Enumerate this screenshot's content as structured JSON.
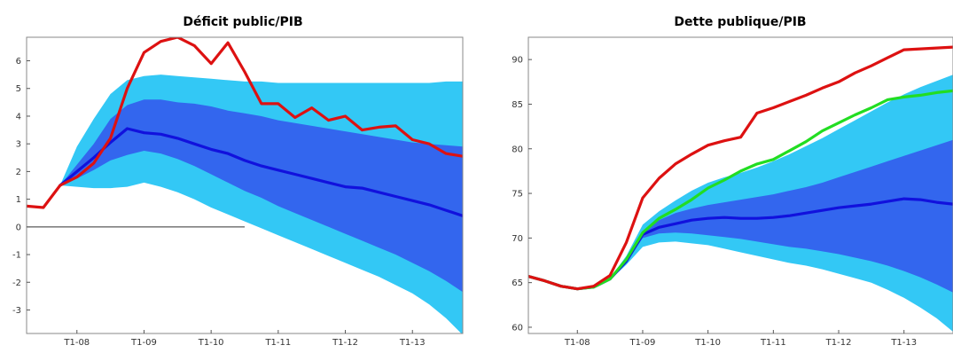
{
  "chart_data": [
    {
      "type": "area",
      "title": "Déficit public/PIB",
      "xlabel": "",
      "ylabel": "",
      "xlim": [
        2007.25,
        2013.75
      ],
      "ylim": [
        -3.85,
        6.85
      ],
      "yticks": [
        -3,
        -2,
        -1,
        0,
        1,
        2,
        3,
        4,
        5,
        6
      ],
      "xticks": [
        {
          "label": "T1-08",
          "x": 2008.0
        },
        {
          "label": "T1-09",
          "x": 2009.0
        },
        {
          "label": "T1-10",
          "x": 2010.0
        },
        {
          "label": "T1-11",
          "x": 2011.0
        },
        {
          "label": "T1-12",
          "x": 2012.0
        },
        {
          "label": "T1-13",
          "x": 2013.0
        }
      ],
      "zero_line": true,
      "grid": false,
      "x": [
        2007.75,
        2008.0,
        2008.25,
        2008.5,
        2008.75,
        2009.0,
        2009.25,
        2009.5,
        2009.75,
        2010.0,
        2010.25,
        2010.5,
        2010.75,
        2011.0,
        2011.25,
        2011.5,
        2011.75,
        2012.0,
        2012.25,
        2012.5,
        2012.75,
        2013.0,
        2013.25,
        2013.5,
        2013.75
      ],
      "bands": [
        {
          "color": "#33c8f5",
          "lower": [
            1.5,
            1.45,
            1.4,
            1.4,
            1.45,
            1.6,
            1.45,
            1.25,
            1.0,
            0.7,
            0.45,
            0.2,
            -0.05,
            -0.3,
            -0.55,
            -0.8,
            -1.05,
            -1.3,
            -1.55,
            -1.8,
            -2.1,
            -2.4,
            -2.8,
            -3.3,
            -3.9
          ],
          "upper": [
            1.5,
            2.9,
            3.9,
            4.8,
            5.3,
            5.45,
            5.5,
            5.45,
            5.4,
            5.35,
            5.3,
            5.25,
            5.25,
            5.2,
            5.2,
            5.2,
            5.2,
            5.2,
            5.2,
            5.2,
            5.2,
            5.2,
            5.2,
            5.25,
            5.25
          ]
        },
        {
          "color": "#3366ee",
          "lower": [
            1.5,
            1.75,
            2.05,
            2.4,
            2.6,
            2.75,
            2.65,
            2.45,
            2.2,
            1.9,
            1.6,
            1.3,
            1.05,
            0.75,
            0.5,
            0.25,
            0.0,
            -0.25,
            -0.5,
            -0.75,
            -1.0,
            -1.3,
            -1.6,
            -1.95,
            -2.35
          ],
          "upper": [
            1.5,
            2.25,
            3.0,
            3.9,
            4.4,
            4.6,
            4.6,
            4.5,
            4.45,
            4.35,
            4.2,
            4.1,
            4.0,
            3.85,
            3.75,
            3.65,
            3.55,
            3.45,
            3.35,
            3.25,
            3.15,
            3.05,
            3.0,
            2.95,
            2.9
          ]
        }
      ],
      "series": [
        {
          "name": "",
          "color": "#1111dd",
          "x": [
            2007.75,
            2008.0,
            2008.25,
            2008.5,
            2008.75,
            2009.0,
            2009.25,
            2009.5,
            2009.75,
            2010.0,
            2010.25,
            2010.5,
            2010.75,
            2011.0,
            2011.25,
            2011.5,
            2011.75,
            2012.0,
            2012.25,
            2012.5,
            2012.75,
            2013.0,
            2013.25,
            2013.5,
            2013.75
          ],
          "values": [
            1.5,
            2.0,
            2.5,
            3.05,
            3.55,
            3.4,
            3.35,
            3.2,
            3.0,
            2.8,
            2.65,
            2.4,
            2.2,
            2.05,
            1.9,
            1.75,
            1.6,
            1.45,
            1.4,
            1.25,
            1.1,
            0.95,
            0.8,
            0.6,
            0.4
          ]
        },
        {
          "name": "",
          "color": "#dd1111",
          "x": [
            2007.0,
            2007.25,
            2007.5,
            2007.75,
            2008.0,
            2008.25,
            2008.5,
            2008.75,
            2009.0,
            2009.25,
            2009.5,
            2009.75,
            2010.0,
            2010.25,
            2010.5,
            2010.75,
            2011.0,
            2011.25,
            2011.5,
            2011.75,
            2012.0,
            2012.25,
            2012.5,
            2012.75,
            2013.0,
            2013.25,
            2013.5,
            2013.75
          ],
          "values": [
            0.5,
            0.75,
            0.7,
            1.5,
            1.8,
            2.3,
            3.2,
            5.0,
            6.3,
            6.7,
            6.85,
            6.55,
            5.9,
            6.65,
            5.6,
            4.45,
            4.45,
            3.95,
            4.3,
            3.85,
            4.0,
            3.5,
            3.6,
            3.65,
            3.15,
            3.0,
            2.65,
            2.55
          ]
        }
      ]
    },
    {
      "type": "area",
      "title": "Dette publique/PIB",
      "xlabel": "",
      "ylabel": "",
      "xlim": [
        2007.25,
        2013.75
      ],
      "ylim": [
        59.3,
        92.5
      ],
      "yticks": [
        60,
        65,
        70,
        75,
        80,
        85,
        90
      ],
      "xticks": [
        {
          "label": "T1-08",
          "x": 2008.0
        },
        {
          "label": "T1-09",
          "x": 2009.0
        },
        {
          "label": "T1-10",
          "x": 2010.0
        },
        {
          "label": "T1-11",
          "x": 2011.0
        },
        {
          "label": "T1-12",
          "x": 2012.0
        },
        {
          "label": "T1-13",
          "x": 2013.0
        }
      ],
      "zero_line": false,
      "grid": false,
      "x": [
        2007.25,
        2007.5,
        2007.75,
        2008.0,
        2008.25,
        2008.5,
        2008.75,
        2009.0,
        2009.25,
        2009.5,
        2009.75,
        2010.0,
        2010.25,
        2010.5,
        2010.75,
        2011.0,
        2011.25,
        2011.5,
        2011.75,
        2012.0,
        2012.25,
        2012.5,
        2012.75,
        2013.0,
        2013.25,
        2013.5,
        2013.75
      ],
      "bands": [
        {
          "color": "#33c8f5",
          "lower": [
            65.7,
            65.2,
            64.6,
            64.3,
            64.5,
            65.3,
            67.0,
            69.0,
            69.5,
            69.6,
            69.4,
            69.2,
            68.8,
            68.4,
            68.0,
            67.6,
            67.2,
            66.9,
            66.5,
            66.0,
            65.5,
            65.0,
            64.2,
            63.3,
            62.2,
            61.0,
            59.5
          ],
          "upper": [
            65.7,
            65.2,
            64.6,
            64.3,
            64.5,
            65.5,
            68.0,
            71.5,
            73.0,
            74.2,
            75.3,
            76.2,
            76.8,
            77.3,
            77.9,
            78.6,
            79.4,
            80.3,
            81.2,
            82.2,
            83.2,
            84.2,
            85.2,
            86.1,
            86.9,
            87.6,
            88.3
          ]
        },
        {
          "color": "#3366ee",
          "lower": [
            65.7,
            65.2,
            64.6,
            64.3,
            64.5,
            65.3,
            67.3,
            70.0,
            70.5,
            70.6,
            70.5,
            70.3,
            70.1,
            69.9,
            69.6,
            69.3,
            69.0,
            68.8,
            68.5,
            68.2,
            67.8,
            67.4,
            66.9,
            66.3,
            65.6,
            64.8,
            63.9
          ],
          "upper": [
            65.7,
            65.2,
            64.6,
            64.3,
            64.5,
            65.4,
            67.6,
            70.8,
            72.0,
            72.8,
            73.3,
            73.7,
            74.0,
            74.3,
            74.6,
            74.9,
            75.3,
            75.7,
            76.2,
            76.8,
            77.4,
            78.0,
            78.6,
            79.2,
            79.8,
            80.4,
            81.0
          ]
        }
      ],
      "series": [
        {
          "name": "",
          "color": "#1111dd",
          "x": [
            2007.25,
            2007.5,
            2007.75,
            2008.0,
            2008.25,
            2008.5,
            2008.75,
            2009.0,
            2009.25,
            2009.5,
            2009.75,
            2010.0,
            2010.25,
            2010.5,
            2010.75,
            2011.0,
            2011.25,
            2011.5,
            2011.75,
            2012.0,
            2012.25,
            2012.5,
            2012.75,
            2013.0,
            2013.25,
            2013.5,
            2013.75
          ],
          "values": [
            65.7,
            65.2,
            64.6,
            64.3,
            64.5,
            65.4,
            67.4,
            70.4,
            71.2,
            71.6,
            72.0,
            72.2,
            72.3,
            72.2,
            72.2,
            72.3,
            72.5,
            72.8,
            73.1,
            73.4,
            73.6,
            73.8,
            74.1,
            74.4,
            74.3,
            74.0,
            73.8
          ]
        },
        {
          "name": "",
          "color": "#22dd22",
          "x": [
            2007.25,
            2007.5,
            2007.75,
            2008.0,
            2008.25,
            2008.5,
            2008.75,
            2009.0,
            2009.25,
            2009.5,
            2009.75,
            2010.0,
            2010.25,
            2010.5,
            2010.75,
            2011.0,
            2011.25,
            2011.5,
            2011.75,
            2012.0,
            2012.25,
            2012.5,
            2012.75,
            2013.0,
            2013.25,
            2013.5,
            2013.75
          ],
          "values": [
            65.7,
            65.2,
            64.6,
            64.3,
            64.5,
            65.4,
            67.6,
            70.6,
            72.2,
            73.2,
            74.3,
            75.6,
            76.5,
            77.5,
            78.3,
            78.8,
            79.8,
            80.8,
            82.0,
            82.9,
            83.8,
            84.6,
            85.5,
            85.8,
            86.0,
            86.3,
            86.5
          ]
        },
        {
          "name": "",
          "color": "#dd1111",
          "x": [
            2007.25,
            2007.5,
            2007.75,
            2008.0,
            2008.25,
            2008.5,
            2008.75,
            2009.0,
            2009.25,
            2009.5,
            2009.75,
            2010.0,
            2010.25,
            2010.5,
            2010.75,
            2011.0,
            2011.25,
            2011.5,
            2011.75,
            2012.0,
            2012.25,
            2012.5,
            2012.75,
            2013.0,
            2013.25,
            2013.5,
            2013.75
          ],
          "values": [
            65.7,
            65.2,
            64.6,
            64.3,
            64.6,
            65.8,
            69.5,
            74.5,
            76.7,
            78.3,
            79.4,
            80.4,
            80.9,
            81.3,
            84.0,
            84.6,
            85.3,
            86.0,
            86.8,
            87.5,
            88.5,
            89.3,
            90.2,
            91.1,
            91.2,
            91.3,
            91.4
          ]
        }
      ]
    }
  ]
}
